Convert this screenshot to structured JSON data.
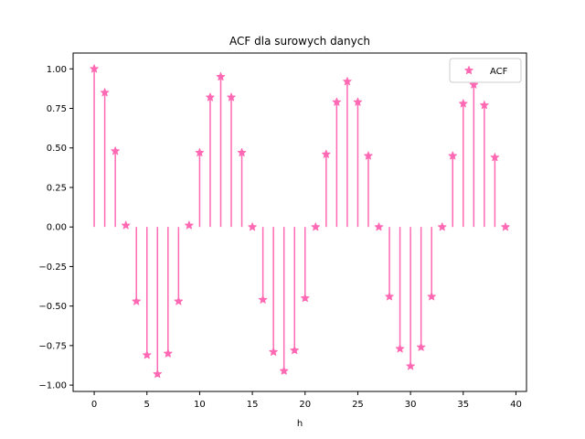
{
  "chart_data": {
    "type": "stem",
    "title": "ACF dla surowych danych",
    "xlabel": "h",
    "ylabel": "",
    "xlim": [
      -2,
      41
    ],
    "ylim": [
      -1.04,
      1.1
    ],
    "xticks": [
      0,
      5,
      10,
      15,
      20,
      25,
      30,
      35,
      40
    ],
    "yticks": [
      -1.0,
      -0.75,
      -0.5,
      -0.25,
      0.0,
      0.25,
      0.5,
      0.75,
      1.0
    ],
    "ytick_labels": [
      "−1.00",
      "−0.75",
      "−0.50",
      "−0.25",
      "0.00",
      "0.25",
      "0.50",
      "0.75",
      "1.00"
    ],
    "legend": {
      "position": "top-right",
      "entries": [
        "ACF"
      ]
    },
    "series": [
      {
        "name": "ACF",
        "color": "#ff69b4",
        "marker": "star",
        "x": [
          0,
          1,
          2,
          3,
          4,
          5,
          6,
          7,
          8,
          9,
          10,
          11,
          12,
          13,
          14,
          15,
          16,
          17,
          18,
          19,
          20,
          21,
          22,
          23,
          24,
          25,
          26,
          27,
          28,
          29,
          30,
          31,
          32,
          33,
          34,
          35,
          36,
          37,
          38,
          39
        ],
        "values": [
          1.0,
          0.85,
          0.48,
          0.01,
          -0.47,
          -0.81,
          -0.93,
          -0.8,
          -0.47,
          0.01,
          0.47,
          0.82,
          0.95,
          0.82,
          0.47,
          0.0,
          -0.46,
          -0.79,
          -0.91,
          -0.78,
          -0.45,
          0.0,
          0.46,
          0.79,
          0.92,
          0.79,
          0.45,
          0.0,
          -0.44,
          -0.77,
          -0.88,
          -0.76,
          -0.44,
          0.0,
          0.45,
          0.78,
          0.9,
          0.77,
          0.44,
          0.0
        ]
      }
    ]
  }
}
